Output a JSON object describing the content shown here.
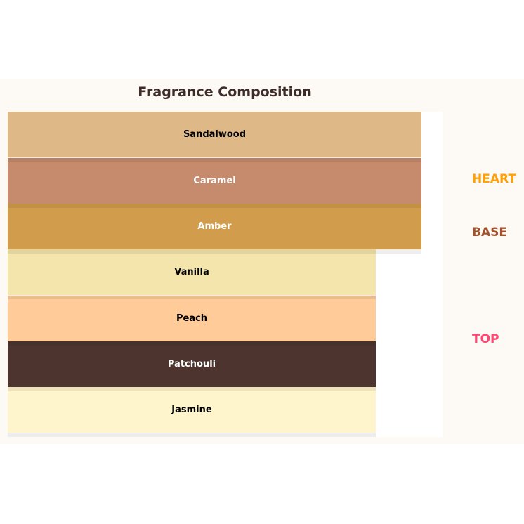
{
  "title": "Fragrance Composition",
  "layers": [
    {
      "label": "Sandalwood",
      "color": "#deb887",
      "text_color": "#000000"
    },
    {
      "label": "Caramel",
      "color": "#c68a6c",
      "text_color": "#ffffff"
    },
    {
      "label": "Amber",
      "color": "#d19c4c",
      "text_color": "#ffffff"
    },
    {
      "label": "Vanilla",
      "color": "#f3e5ab",
      "text_color": "#000000"
    },
    {
      "label": "Peach",
      "color": "#ffcb98",
      "text_color": "#000000"
    },
    {
      "label": "Patchouli",
      "color": "#4e342f",
      "text_color": "#ffffff"
    },
    {
      "label": "Jasmine",
      "color": "#fef5cc",
      "text_color": "#000000"
    }
  ],
  "tiers": [
    {
      "label": "HEART",
      "color": "#ff9f0a"
    },
    {
      "label": "BASE",
      "color": "#a0522d"
    },
    {
      "label": "TOP",
      "color": "#ff4775"
    }
  ]
}
